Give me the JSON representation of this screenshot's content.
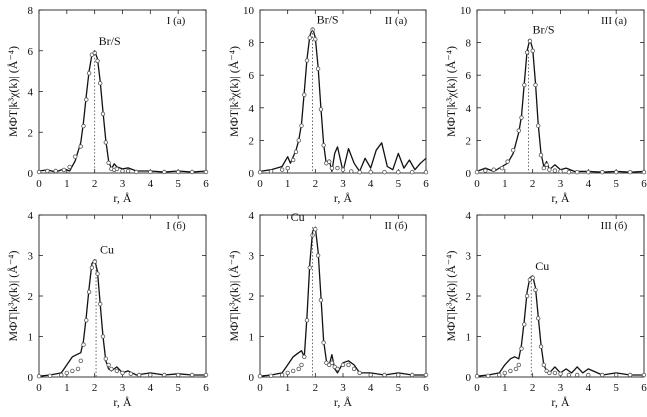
{
  "chart_data": [
    {
      "type": "line",
      "title": "I (a)",
      "xlabel": "r, Å",
      "ylabel": "МФТ|k³χ(k)| (Å⁻⁴)",
      "xlim": [
        0,
        6
      ],
      "ylim": [
        0,
        8
      ],
      "xticks": [
        0,
        1,
        2,
        3,
        4,
        5,
        6
      ],
      "yticks": [
        0,
        2,
        4,
        6,
        8
      ],
      "grid": false,
      "annotations": [
        {
          "text": "Br/S",
          "x": 2.0,
          "y": 6.0
        }
      ],
      "series": [
        {
          "style": "line",
          "x": [
            0,
            0.3,
            0.6,
            0.9,
            1.1,
            1.3,
            1.5,
            1.6,
            1.7,
            1.8,
            1.9,
            2.0,
            2.1,
            2.2,
            2.3,
            2.4,
            2.5,
            2.6,
            2.7,
            2.8,
            3.0,
            3.2,
            3.5,
            4.0,
            4.5,
            5.0,
            5.5,
            6.0
          ],
          "y": [
            0.1,
            0.15,
            0.05,
            0.2,
            0.1,
            0.6,
            1.5,
            2.5,
            3.8,
            5.0,
            5.8,
            6.0,
            5.6,
            4.5,
            3.0,
            1.6,
            0.6,
            0.2,
            0.45,
            0.3,
            0.2,
            0.25,
            0.1,
            0.1,
            0.05,
            0.1,
            0.05,
            0.1
          ]
        },
        {
          "style": "markers",
          "x": [
            0,
            0.3,
            0.6,
            0.9,
            1.1,
            1.3,
            1.5,
            1.6,
            1.7,
            1.8,
            1.9,
            2.0,
            2.1,
            2.2,
            2.3,
            2.4,
            2.5,
            2.6,
            2.7,
            2.8,
            3.0,
            3.2,
            3.5,
            4.0,
            4.5,
            5.0,
            5.5,
            6.0
          ],
          "y": [
            0.05,
            0.1,
            0.1,
            0.15,
            0.3,
            0.8,
            1.3,
            2.3,
            3.6,
            4.9,
            5.8,
            5.9,
            5.5,
            4.4,
            2.9,
            1.5,
            0.5,
            0.2,
            0.15,
            0.2,
            0.1,
            0.1,
            0.05,
            0.05,
            0.05,
            0.05,
            0.05,
            0.05
          ]
        }
      ]
    },
    {
      "type": "line",
      "title": "II (a)",
      "xlabel": "r, Å",
      "ylabel": "МФТ|k³χ(k)| (Å⁻⁴)",
      "xlim": [
        0,
        6
      ],
      "ylim": [
        0,
        10
      ],
      "xticks": [
        0,
        1,
        2,
        3,
        4,
        5,
        6
      ],
      "yticks": [
        0,
        2,
        4,
        6,
        8,
        10
      ],
      "grid": false,
      "annotations": [
        {
          "text": "Br/S",
          "x": 1.9,
          "y": 8.8
        }
      ],
      "series": [
        {
          "style": "line",
          "x": [
            0,
            0.4,
            0.8,
            1.0,
            1.1,
            1.3,
            1.4,
            1.5,
            1.6,
            1.7,
            1.8,
            1.9,
            2.0,
            2.1,
            2.2,
            2.3,
            2.4,
            2.5,
            2.6,
            2.7,
            2.8,
            3.0,
            3.2,
            3.4,
            3.6,
            3.8,
            4.0,
            4.2,
            4.4,
            4.6,
            4.8,
            5.0,
            5.2,
            5.4,
            5.6,
            5.8,
            6.0
          ],
          "y": [
            0.1,
            0.2,
            0.4,
            1.0,
            0.6,
            1.4,
            2.0,
            3.0,
            5.0,
            7.0,
            8.4,
            8.9,
            8.3,
            6.5,
            4.0,
            1.8,
            0.5,
            0.8,
            0.1,
            1.2,
            1.6,
            0.1,
            1.5,
            0.6,
            0.1,
            0.9,
            0.3,
            1.4,
            1.85,
            0.4,
            0.2,
            1.2,
            0.3,
            0.8,
            0.2,
            0.6,
            0.9
          ]
        },
        {
          "style": "markers",
          "x": [
            0,
            0.4,
            0.8,
            1.0,
            1.2,
            1.3,
            1.4,
            1.5,
            1.6,
            1.7,
            1.8,
            1.9,
            2.0,
            2.1,
            2.2,
            2.3,
            2.4,
            2.5,
            2.6,
            2.8,
            3.0,
            3.3,
            3.6,
            4.0,
            4.5,
            5.0,
            5.5,
            6.0
          ],
          "y": [
            0.05,
            0.1,
            0.2,
            0.3,
            0.8,
            1.3,
            2.0,
            2.9,
            4.8,
            6.9,
            8.3,
            8.8,
            8.2,
            6.4,
            3.9,
            1.7,
            0.6,
            0.7,
            0.3,
            0.3,
            0.2,
            0.1,
            0.05,
            0.05,
            0.05,
            0.05,
            0.05,
            0.05
          ]
        }
      ]
    },
    {
      "type": "line",
      "title": "III (a)",
      "xlabel": "r, Å",
      "ylabel": "МФТ|k³χ(k)| (Å⁻⁴)",
      "xlim": [
        0,
        6
      ],
      "ylim": [
        0,
        10
      ],
      "xticks": [
        0,
        1,
        2,
        3,
        4,
        5,
        6
      ],
      "yticks": [
        0,
        2,
        4,
        6,
        8,
        10
      ],
      "grid": false,
      "annotations": [
        {
          "text": "Br/S",
          "x": 1.85,
          "y": 8.2
        }
      ],
      "series": [
        {
          "style": "line",
          "x": [
            0,
            0.3,
            0.6,
            0.9,
            1.1,
            1.3,
            1.5,
            1.6,
            1.7,
            1.8,
            1.9,
            2.0,
            2.1,
            2.2,
            2.3,
            2.4,
            2.5,
            2.6,
            2.8,
            3.0,
            3.2,
            3.5,
            4.0,
            4.5,
            5.0,
            5.5,
            6.0
          ],
          "y": [
            0.1,
            0.3,
            0.1,
            0.4,
            0.6,
            1.2,
            2.5,
            3.5,
            5.5,
            7.5,
            8.2,
            7.6,
            5.5,
            3.0,
            1.2,
            0.4,
            0.7,
            0.2,
            0.5,
            0.2,
            0.3,
            0.1,
            0.1,
            0.05,
            0.1,
            0.05,
            0.1
          ]
        },
        {
          "style": "markers",
          "x": [
            0,
            0.3,
            0.6,
            0.9,
            1.1,
            1.3,
            1.5,
            1.6,
            1.7,
            1.8,
            1.9,
            2.0,
            2.1,
            2.2,
            2.3,
            2.4,
            2.5,
            2.6,
            2.8,
            3.0,
            3.3,
            3.6,
            4.0,
            4.5,
            5.0,
            5.5,
            6.0
          ],
          "y": [
            0.05,
            0.15,
            0.2,
            0.3,
            0.7,
            1.4,
            2.6,
            3.4,
            5.4,
            7.4,
            8.1,
            7.5,
            5.4,
            2.9,
            1.1,
            0.3,
            0.5,
            0.2,
            0.15,
            0.1,
            0.05,
            0.05,
            0.05,
            0.05,
            0.05,
            0.05,
            0.05
          ]
        }
      ]
    },
    {
      "type": "line",
      "title": "I (б)",
      "xlabel": "r, Å",
      "ylabel": "МФТ|k³χ(k)| (Å⁻⁴)",
      "xlim": [
        0,
        6
      ],
      "ylim": [
        0,
        4
      ],
      "xticks": [
        0,
        1,
        2,
        3,
        4,
        5,
        6
      ],
      "yticks": [
        0,
        1,
        2,
        3,
        4
      ],
      "grid": false,
      "annotations": [
        {
          "text": "Cu",
          "x": 2.05,
          "y": 2.9
        }
      ],
      "series": [
        {
          "style": "line",
          "x": [
            0,
            0.4,
            0.8,
            1.0,
            1.2,
            1.35,
            1.5,
            1.6,
            1.7,
            1.8,
            1.9,
            2.0,
            2.1,
            2.2,
            2.3,
            2.4,
            2.5,
            2.6,
            2.8,
            3.0,
            3.2,
            3.5,
            4.0,
            4.5,
            5.0,
            5.5,
            6.0
          ],
          "y": [
            0.02,
            0.05,
            0.1,
            0.3,
            0.5,
            0.55,
            0.6,
            0.9,
            1.5,
            2.2,
            2.8,
            2.9,
            2.6,
            1.8,
            1.0,
            0.4,
            0.2,
            0.15,
            0.25,
            0.1,
            0.15,
            0.05,
            0.1,
            0.05,
            0.08,
            0.05,
            0.05
          ]
        },
        {
          "style": "markers",
          "x": [
            0,
            0.4,
            0.8,
            1.0,
            1.2,
            1.4,
            1.5,
            1.6,
            1.7,
            1.8,
            1.9,
            2.0,
            2.1,
            2.2,
            2.3,
            2.4,
            2.5,
            2.6,
            2.8,
            3.0,
            3.3,
            3.6,
            4.0,
            4.5,
            5.0,
            5.5,
            6.0
          ],
          "y": [
            0.02,
            0.03,
            0.05,
            0.1,
            0.15,
            0.2,
            0.4,
            0.8,
            1.4,
            2.1,
            2.7,
            2.85,
            2.55,
            1.8,
            1.0,
            0.45,
            0.3,
            0.2,
            0.15,
            0.1,
            0.08,
            0.05,
            0.05,
            0.05,
            0.05,
            0.05,
            0.05
          ]
        }
      ]
    },
    {
      "type": "line",
      "title": "II (б)",
      "xlabel": "r, Å",
      "ylabel": "МФТ|k³χ(k)| (Å⁻⁴)",
      "xlim": [
        0,
        6
      ],
      "ylim": [
        0,
        4
      ],
      "xticks": [
        0,
        1,
        2,
        3,
        4,
        5,
        6
      ],
      "yticks": [
        0,
        1,
        2,
        3,
        4
      ],
      "grid": false,
      "annotations": [
        {
          "text": "Cu",
          "x": 1.9,
          "y": 3.7
        }
      ],
      "series": [
        {
          "style": "line",
          "x": [
            0,
            0.4,
            0.8,
            1.0,
            1.2,
            1.4,
            1.5,
            1.6,
            1.7,
            1.8,
            1.9,
            2.0,
            2.1,
            2.2,
            2.3,
            2.4,
            2.5,
            2.6,
            2.7,
            2.8,
            3.0,
            3.2,
            3.4,
            3.6,
            4.0,
            4.5,
            5.0,
            5.5,
            6.0
          ],
          "y": [
            0.02,
            0.05,
            0.1,
            0.3,
            0.5,
            0.6,
            0.65,
            0.5,
            1.5,
            2.8,
            3.6,
            3.7,
            3.1,
            2.0,
            0.9,
            0.4,
            0.3,
            0.55,
            0.2,
            0.1,
            0.35,
            0.4,
            0.3,
            0.1,
            0.1,
            0.05,
            0.1,
            0.05,
            0.05
          ]
        },
        {
          "style": "markers",
          "x": [
            0,
            0.4,
            0.8,
            1.0,
            1.2,
            1.4,
            1.5,
            1.6,
            1.7,
            1.8,
            1.9,
            2.0,
            2.1,
            2.2,
            2.3,
            2.4,
            2.5,
            2.6,
            2.7,
            2.8,
            3.0,
            3.2,
            3.4,
            3.6,
            4.0,
            4.5,
            5.0,
            5.5,
            6.0
          ],
          "y": [
            0.02,
            0.03,
            0.05,
            0.1,
            0.15,
            0.2,
            0.3,
            0.5,
            1.4,
            2.7,
            3.5,
            3.65,
            3.0,
            1.9,
            0.85,
            0.35,
            0.3,
            0.35,
            0.25,
            0.2,
            0.3,
            0.3,
            0.2,
            0.1,
            0.05,
            0.05,
            0.05,
            0.05,
            0.05
          ]
        }
      ]
    },
    {
      "type": "line",
      "title": "III (б)",
      "xlabel": "r, Å",
      "ylabel": "МФТ|k³χ(k)| (Å⁻⁴)",
      "xlim": [
        0,
        6
      ],
      "ylim": [
        0,
        4
      ],
      "xticks": [
        0,
        1,
        2,
        3,
        4,
        5,
        6
      ],
      "yticks": [
        0,
        1,
        2,
        3,
        4
      ],
      "grid": false,
      "annotations": [
        {
          "text": "Cu",
          "x": 1.95,
          "y": 2.5
        }
      ],
      "series": [
        {
          "style": "line",
          "x": [
            0,
            0.4,
            0.8,
            1.0,
            1.2,
            1.35,
            1.5,
            1.6,
            1.7,
            1.8,
            1.9,
            2.0,
            2.1,
            2.2,
            2.3,
            2.4,
            2.5,
            2.6,
            2.8,
            3.0,
            3.2,
            3.4,
            3.6,
            3.8,
            4.0,
            4.5,
            5.0,
            5.5,
            6.0
          ],
          "y": [
            0.02,
            0.05,
            0.1,
            0.3,
            0.45,
            0.5,
            0.45,
            0.8,
            1.4,
            2.1,
            2.45,
            2.5,
            2.2,
            1.5,
            0.8,
            0.3,
            0.15,
            0.1,
            0.25,
            0.1,
            0.2,
            0.1,
            0.25,
            0.1,
            0.2,
            0.05,
            0.1,
            0.05,
            0.05
          ]
        },
        {
          "style": "markers",
          "x": [
            0,
            0.4,
            0.8,
            1.0,
            1.2,
            1.4,
            1.5,
            1.6,
            1.7,
            1.8,
            1.9,
            2.0,
            2.1,
            2.2,
            2.3,
            2.4,
            2.5,
            2.6,
            2.8,
            3.0,
            3.3,
            3.6,
            4.0,
            4.5,
            5.0,
            5.5,
            6.0
          ],
          "y": [
            0.02,
            0.03,
            0.05,
            0.1,
            0.15,
            0.2,
            0.3,
            0.7,
            1.3,
            2.0,
            2.4,
            2.45,
            2.15,
            1.45,
            0.75,
            0.3,
            0.15,
            0.1,
            0.1,
            0.08,
            0.05,
            0.05,
            0.05,
            0.05,
            0.05,
            0.05,
            0.05
          ]
        }
      ]
    }
  ]
}
